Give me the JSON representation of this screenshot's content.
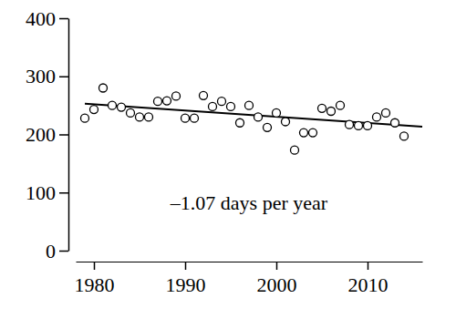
{
  "chart_data": {
    "type": "scatter",
    "annotation": "–1.07 days per year",
    "x": [
      1979,
      1980,
      1981,
      1982,
      1983,
      1984,
      1985,
      1986,
      1987,
      1988,
      1989,
      1990,
      1991,
      1992,
      1993,
      1994,
      1995,
      1996,
      1997,
      1998,
      1999,
      2000,
      2001,
      2002,
      2003,
      2004,
      2005,
      2006,
      2007,
      2008,
      2009,
      2010,
      2011,
      2012,
      2013,
      2014
    ],
    "values": [
      228,
      243,
      280,
      250,
      247,
      237,
      230,
      230,
      257,
      258,
      266,
      228,
      228,
      267,
      248,
      257,
      248,
      220,
      250,
      230,
      212,
      237,
      222,
      173,
      203,
      203,
      245,
      240,
      250,
      217,
      215,
      215,
      230,
      237,
      220,
      197
    ],
    "trend_line": {
      "x": [
        1979,
        2016
      ],
      "values": [
        253,
        213.4
      ]
    },
    "marker": "open-circle",
    "color": "#000000",
    "xlim": [
      1978,
      2016
    ],
    "xticks": [
      1980,
      1990,
      2000,
      2010
    ],
    "ylim": [
      0,
      400
    ],
    "yticks": [
      0,
      100,
      200,
      300,
      400
    ],
    "grid": false
  }
}
